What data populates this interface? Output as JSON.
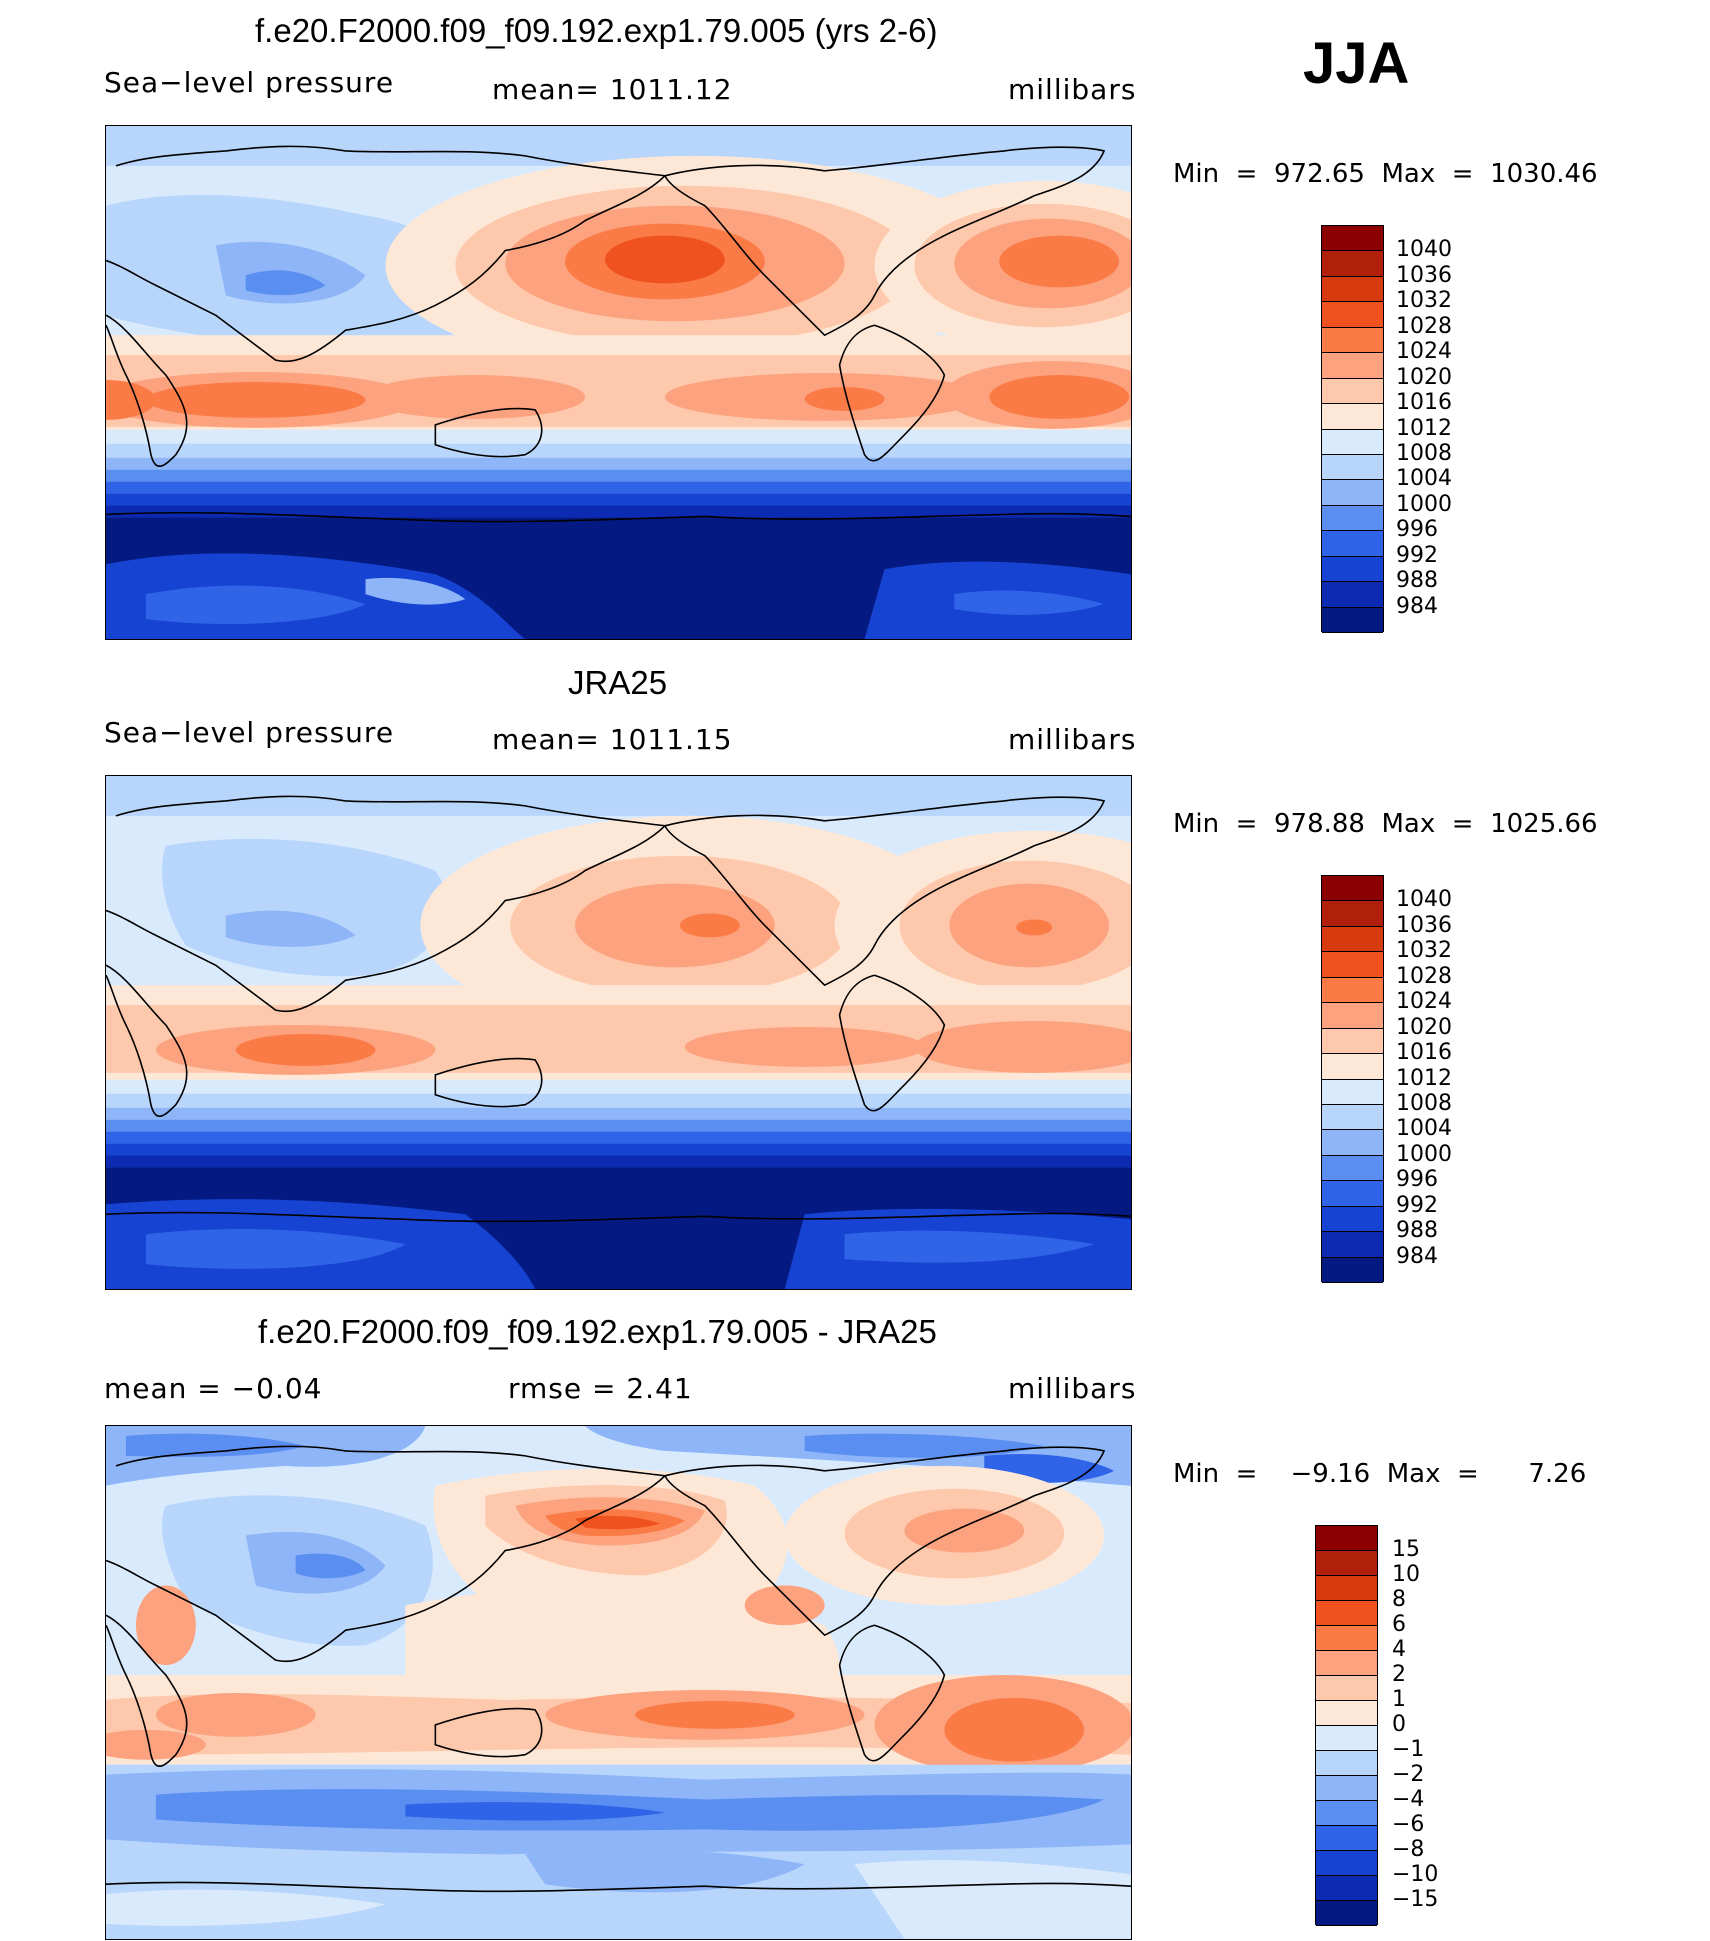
{
  "season": "JJA",
  "palette_abs": [
    "#8b0000",
    "#b0200a",
    "#d83a10",
    "#f0521f",
    "#fb7b46",
    "#fca27f",
    "#fdc8ab",
    "#fde8d7",
    "#d8eafc",
    "#b8d5fc",
    "#8db5f7",
    "#5b8ef1",
    "#2f63e8",
    "#1643d1",
    "#0c2ab2",
    "#041a82"
  ],
  "palette_diff": [
    "#8b0000",
    "#b0200a",
    "#d83a10",
    "#f0521f",
    "#fb7b46",
    "#fca27f",
    "#fdc8ab",
    "#fde8d7",
    "#d8eafc",
    "#b8d5fc",
    "#8db5f7",
    "#5b8ef1",
    "#2f63e8",
    "#1643d1",
    "#0c2ab2",
    "#041a82"
  ],
  "panels": [
    {
      "title": "f.e20.F2000.f09_f09.192.exp1.79.005 (yrs 2-6)",
      "left": "Sea−level pressure",
      "mid": "mean=  1011.12",
      "right": "millibars",
      "minmax": "Min  =  972.65  Max  =  1030.46",
      "levels": [
        "1040",
        "1036",
        "1032",
        "1028",
        "1024",
        "1020",
        "1016",
        "1012",
        "1008",
        "1004",
        "1000",
        "996",
        "992",
        "988",
        "984"
      ]
    },
    {
      "title": "JRA25",
      "left": "Sea−level pressure",
      "mid": "mean=  1011.15",
      "right": "millibars",
      "minmax": "Min  =  978.88  Max  =  1025.66",
      "levels": [
        "1040",
        "1036",
        "1032",
        "1028",
        "1024",
        "1020",
        "1016",
        "1012",
        "1008",
        "1004",
        "1000",
        "996",
        "992",
        "988",
        "984"
      ]
    },
    {
      "title": "f.e20.F2000.f09_f09.192.exp1.79.005 - JRA25",
      "left": "mean  =    −0.04",
      "mid": "rmse  =     2.41",
      "right": "millibars",
      "minmax": "Min  =    −9.16  Max  =      7.26",
      "levels": [
        "15",
        "10",
        "8",
        "6",
        "4",
        "2",
        "1",
        "0",
        "−1",
        "−2",
        "−4",
        "−6",
        "−8",
        "−10",
        "−15"
      ]
    }
  ]
}
